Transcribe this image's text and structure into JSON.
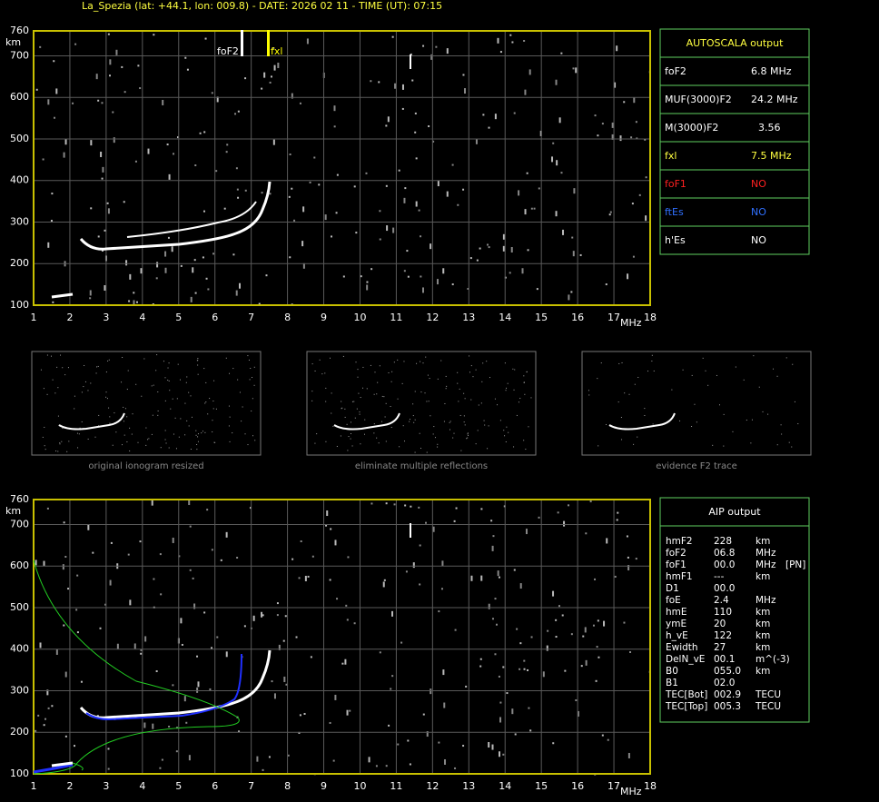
{
  "header": {
    "title": "La_Spezia (lat: +44.1, lon: 009.8) - DATE: 2026 02 11 - TIME (UT): 07:15"
  },
  "ionogram": {
    "y_unit": "km",
    "x_unit": "MHz",
    "xticks": [
      1,
      2,
      3,
      4,
      5,
      6,
      7,
      8,
      9,
      10,
      11,
      12,
      13,
      14,
      15,
      16,
      17,
      18
    ],
    "yticks": [
      100,
      200,
      300,
      400,
      500,
      600,
      700,
      760
    ],
    "markers": [
      "foF2",
      "fxl"
    ]
  },
  "autoscala": {
    "title": "AUTOSCALA output",
    "rows": [
      [
        "foF2",
        "6.8 MHz"
      ],
      [
        "MUF(3000)F2",
        "24.2 MHz"
      ],
      [
        "M(3000)F2",
        "3.56"
      ],
      [
        "fxl",
        "7.5 MHz"
      ],
      [
        "foF1",
        "NO"
      ],
      [
        "ftEs",
        "NO"
      ],
      [
        "h'Es",
        "NO"
      ]
    ]
  },
  "panels": [
    "original ionogram resized",
    "eliminate multiple reflections",
    "evidence F2 trace"
  ],
  "aip": {
    "title": "AIP output",
    "rows": [
      [
        "hmF2",
        "228",
        "km"
      ],
      [
        "foF2",
        "06.8",
        "MHz"
      ],
      [
        "foF1",
        "00.0",
        "MHz",
        "[PN]"
      ],
      [
        "hmF1",
        "---",
        "km"
      ],
      [
        "D1",
        "00.0"
      ],
      [
        "foE",
        "2.4",
        "MHz"
      ],
      [
        "hmE",
        "110",
        "km"
      ],
      [
        "ymE",
        "20",
        "km"
      ],
      [
        "h_vE",
        "122",
        "km"
      ],
      [
        "Ewidth",
        "27",
        "km"
      ],
      [
        "DelN_vE",
        "00.1",
        "m^(-3)"
      ],
      [
        "B0",
        "055.0",
        "km"
      ],
      [
        "B1",
        "02.0"
      ],
      [
        "TEC[Bot]",
        "002.9",
        "TECU"
      ],
      [
        "TEC[Top]",
        "005.3",
        "TECU"
      ]
    ]
  }
}
